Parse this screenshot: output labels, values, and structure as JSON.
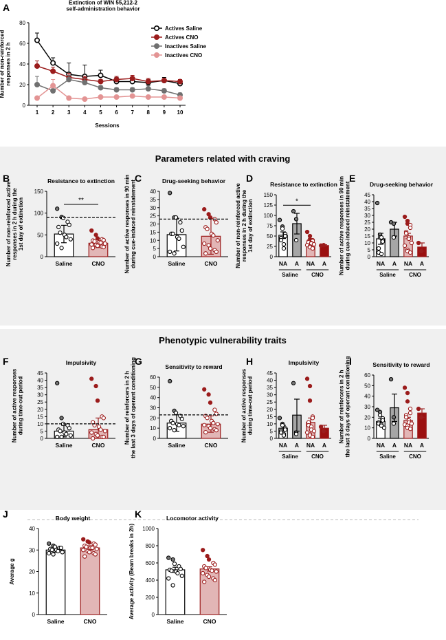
{
  "colors": {
    "saline_fill": "#ffffff",
    "saline_stroke": "#000000",
    "saline_a_fill": "#a6a6a6",
    "cno_fill": "#e2b6b6",
    "cno_stroke": "#9b1c1c",
    "cno_a_fill": "#9b1010",
    "inactive_saline": "#707070",
    "inactive_cno": "#e39494",
    "section_bg": "#f0f0f0"
  },
  "sections": {
    "craving": "Parameters related with craving",
    "vulnerability": "Phenotypic vulnerability traits"
  },
  "chart_data": [
    {
      "id": "A",
      "type": "line",
      "title": "Extinction of WIN 55,212-2\nself-administration behavior",
      "xlabel": "Sessions",
      "ylabel": "Number of non-reinforced\nresponses in 2 h",
      "x": [
        1,
        2,
        3,
        4,
        5,
        6,
        7,
        8,
        9,
        10
      ],
      "xlim": [
        1,
        10
      ],
      "ylim": [
        0,
        80
      ],
      "yticks": [
        0,
        20,
        40,
        60,
        80
      ],
      "series": [
        {
          "name": "Actives Saline",
          "values": [
            63,
            41,
            30,
            28,
            29,
            23,
            23,
            22,
            24,
            21
          ],
          "err": [
            7,
            5,
            11,
            11,
            5,
            4,
            3,
            3,
            3,
            2
          ]
        },
        {
          "name": "Actives CNO",
          "values": [
            38,
            33,
            27,
            25,
            23,
            25,
            26,
            23,
            24,
            23
          ],
          "err": [
            5,
            4,
            4,
            3,
            2,
            3,
            3,
            3,
            2,
            2
          ]
        },
        {
          "name": "Inactives Saline",
          "values": [
            20,
            14,
            25,
            22,
            17,
            15,
            15,
            16,
            14,
            10
          ],
          "err": [
            8,
            2,
            4,
            4,
            2,
            2,
            2,
            3,
            2,
            2
          ]
        },
        {
          "name": "Inactives CNO",
          "values": [
            7,
            19,
            7,
            6,
            8,
            8,
            9,
            8,
            8,
            7
          ],
          "err": [
            1,
            6,
            1,
            1,
            1,
            1,
            1,
            1,
            1,
            1
          ]
        }
      ]
    },
    {
      "id": "B",
      "type": "bar",
      "title": "Resistance to extinction",
      "ylabel": "Number of non-reinforced active\nresponses in 2 h during the\n1st day of extinction",
      "categories": [
        "Saline",
        "CNO"
      ],
      "values": [
        52,
        31
      ],
      "err": [
        20,
        10
      ],
      "ylim": [
        0,
        150
      ],
      "yticks": [
        0,
        50,
        100,
        150
      ],
      "threshold": 90,
      "points": [
        [
          110,
          91,
          89,
          80,
          73,
          68,
          55,
          50,
          45,
          40,
          30,
          20
        ],
        [
          60,
          50,
          42,
          40,
          38,
          37,
          35,
          33,
          32,
          30,
          28,
          27,
          25,
          23,
          22,
          20
        ]
      ],
      "significance": {
        "label": "**",
        "between": [
          "Saline",
          "CNO"
        ]
      }
    },
    {
      "id": "C",
      "type": "bar",
      "title": "Drug-seeking behavior",
      "ylabel": "Number of active responses in 90 min\nduring cue-induced reinstatement",
      "categories": [
        "Saline",
        "CNO"
      ],
      "values": [
        13.5,
        12.5
      ],
      "err": [
        10,
        11
      ],
      "ylim": [
        0,
        40
      ],
      "yticks": [
        0,
        5,
        10,
        15,
        20,
        25,
        30,
        35,
        40
      ],
      "threshold": 23,
      "points": [
        [
          39,
          24,
          24,
          21,
          16,
          14,
          14,
          12,
          11,
          6,
          3,
          2
        ],
        [
          29,
          26,
          24,
          23,
          21,
          18,
          17,
          14,
          13,
          10,
          8,
          7,
          5,
          4,
          3,
          2
        ]
      ]
    },
    {
      "id": "D",
      "type": "bar",
      "title": "Resistance to extinction",
      "ylabel": "Number of non-reinforced active\nresponses in 2 h during the\n1st day of extinction",
      "categories": [
        "NA",
        "A",
        "NA",
        "A"
      ],
      "groups": [
        "Saline",
        "CNO"
      ],
      "values": [
        52,
        80,
        33,
        27
      ],
      "err": [
        8,
        25,
        4,
        2
      ],
      "ylim": [
        0,
        150
      ],
      "yticks": [
        0,
        25,
        50,
        75,
        100,
        125,
        150
      ],
      "points": [
        [
          89,
          73,
          68,
          55,
          50,
          45,
          40,
          30,
          20
        ],
        [
          110,
          91,
          40
        ],
        [
          60,
          50,
          42,
          40,
          38,
          37,
          35,
          33,
          32,
          30,
          28,
          25,
          23,
          20
        ],
        [
          27,
          28
        ]
      ],
      "significance": {
        "label": "*",
        "between": [
          "Saline NA",
          "CNO NA"
        ]
      }
    },
    {
      "id": "E",
      "type": "bar",
      "title": "Drug-seeking behavior",
      "ylabel": "Number of active responses in 90 min\nduring cue-induced reinstatement",
      "categories": [
        "NA",
        "A",
        "NA",
        "A"
      ],
      "groups": [
        "Saline",
        "CNO"
      ],
      "values": [
        13,
        20,
        15,
        7
      ],
      "err": [
        4,
        5,
        2,
        3
      ],
      "ylim": [
        0,
        45
      ],
      "yticks": [
        0,
        5,
        10,
        15,
        20,
        25,
        30,
        35,
        40,
        45
      ],
      "points": [
        [
          39,
          16,
          14,
          12,
          11,
          6,
          3,
          2,
          14
        ],
        [
          25,
          24,
          14
        ],
        [
          29,
          26,
          24,
          23,
          21,
          18,
          17,
          14,
          13,
          10,
          8,
          5,
          4,
          3
        ],
        [
          10,
          4
        ]
      ]
    },
    {
      "id": "F",
      "type": "bar",
      "title": "Impulsivity",
      "ylabel": "Number of active responses\nduring time-out period",
      "categories": [
        "Saline",
        "CNO"
      ],
      "values": [
        5,
        6
      ],
      "err": [
        4,
        8
      ],
      "ylim": [
        0,
        45
      ],
      "yticks": [
        0,
        5,
        10,
        15,
        20,
        25,
        30,
        35,
        40,
        45
      ],
      "threshold": 10,
      "points": [
        [
          38,
          14,
          10,
          9,
          7,
          6,
          5,
          4,
          3,
          2,
          1,
          1
        ],
        [
          41,
          36,
          26,
          15,
          14,
          11,
          9,
          8,
          6,
          5,
          4,
          3,
          2,
          1,
          1,
          0
        ]
      ]
    },
    {
      "id": "G",
      "type": "bar",
      "title": "Sensitivity to reward",
      "ylabel": "Number of reinforcers in 2 h\nthe last 3 days of operant conditioning",
      "categories": [
        "Saline",
        "CNO"
      ],
      "values": [
        15,
        14
      ],
      "err": [
        8,
        8
      ],
      "ylim": [
        0,
        60
      ],
      "yticks": [
        0,
        10,
        20,
        30,
        40,
        50,
        60
      ],
      "threshold": 23,
      "points": [
        [
          56,
          27,
          25,
          22,
          19,
          17,
          15,
          14,
          13,
          12,
          10,
          8
        ],
        [
          48,
          43,
          35,
          28,
          24,
          22,
          20,
          17,
          15,
          14,
          13,
          12,
          10,
          9,
          8,
          6
        ]
      ]
    },
    {
      "id": "H",
      "type": "bar",
      "title": "Impulsivity",
      "ylabel": "Number of active responses\nduring time-out period",
      "categories": [
        "NA",
        "A",
        "NA",
        "A"
      ],
      "groups": [
        "Saline",
        "CNO"
      ],
      "values": [
        7,
        16,
        11,
        7
      ],
      "err": [
        2,
        11,
        3,
        2
      ],
      "ylim": [
        0,
        45
      ],
      "yticks": [
        0,
        5,
        10,
        15,
        20,
        25,
        30,
        35,
        40,
        45
      ],
      "points": [
        [
          14,
          10,
          9,
          7,
          6,
          5,
          4,
          3,
          2
        ],
        [
          38,
          4,
          3
        ],
        [
          41,
          36,
          26,
          15,
          14,
          11,
          9,
          8,
          6,
          5,
          4,
          3,
          2,
          1
        ],
        [
          8,
          5
        ]
      ]
    },
    {
      "id": "I",
      "type": "bar",
      "title": "Sensitivity to reward",
      "ylabel": "Number of reinforcers in 2 h\nthe last 3 days of operant conditioning",
      "categories": [
        "NA",
        "A",
        "NA",
        "A"
      ],
      "groups": [
        "Saline",
        "CNO"
      ],
      "values": [
        16,
        29,
        17,
        24
      ],
      "err": [
        3,
        13,
        3,
        4
      ],
      "ylim": [
        0,
        60
      ],
      "yticks": [
        0,
        10,
        20,
        30,
        40,
        50,
        60
      ],
      "points": [
        [
          27,
          25,
          22,
          19,
          17,
          15,
          14,
          13,
          12,
          10
        ],
        [
          56,
          20,
          14
        ],
        [
          48,
          43,
          35,
          28,
          24,
          22,
          20,
          17,
          15,
          14,
          13,
          12,
          10,
          9
        ],
        [
          28,
          20
        ]
      ]
    },
    {
      "id": "J",
      "type": "bar",
      "title": "Body weight",
      "ylabel": "Average g",
      "categories": [
        "Saline",
        "CNO"
      ],
      "values": [
        30,
        31
      ],
      "err": [
        1,
        1
      ],
      "ylim": [
        0,
        40
      ],
      "yticks": [
        0,
        10,
        20,
        30,
        40
      ],
      "points": [
        [
          33,
          32,
          31.5,
          31,
          31,
          30.5,
          30,
          30,
          29.5,
          29,
          28.5,
          28
        ],
        [
          35,
          34,
          33.5,
          33,
          32.5,
          32,
          31.5,
          31,
          31,
          30.5,
          30,
          29.5,
          29,
          28.5,
          28,
          27
        ]
      ]
    },
    {
      "id": "K",
      "type": "bar",
      "title": "Locomotor activity",
      "ylabel": "Average activity (Beam breaks in 2h)",
      "categories": [
        "Saline",
        "CNO"
      ],
      "values": [
        520,
        530
      ],
      "err": [
        30,
        25
      ],
      "ylim": [
        0,
        1000
      ],
      "yticks": [
        0,
        200,
        400,
        600,
        800,
        1000
      ],
      "points": [
        [
          660,
          640,
          590,
          560,
          530,
          520,
          510,
          500,
          480,
          450,
          420,
          340
        ],
        [
          750,
          680,
          640,
          600,
          580,
          560,
          540,
          520,
          510,
          500,
          480,
          460,
          440,
          420,
          400,
          380
        ]
      ]
    }
  ]
}
